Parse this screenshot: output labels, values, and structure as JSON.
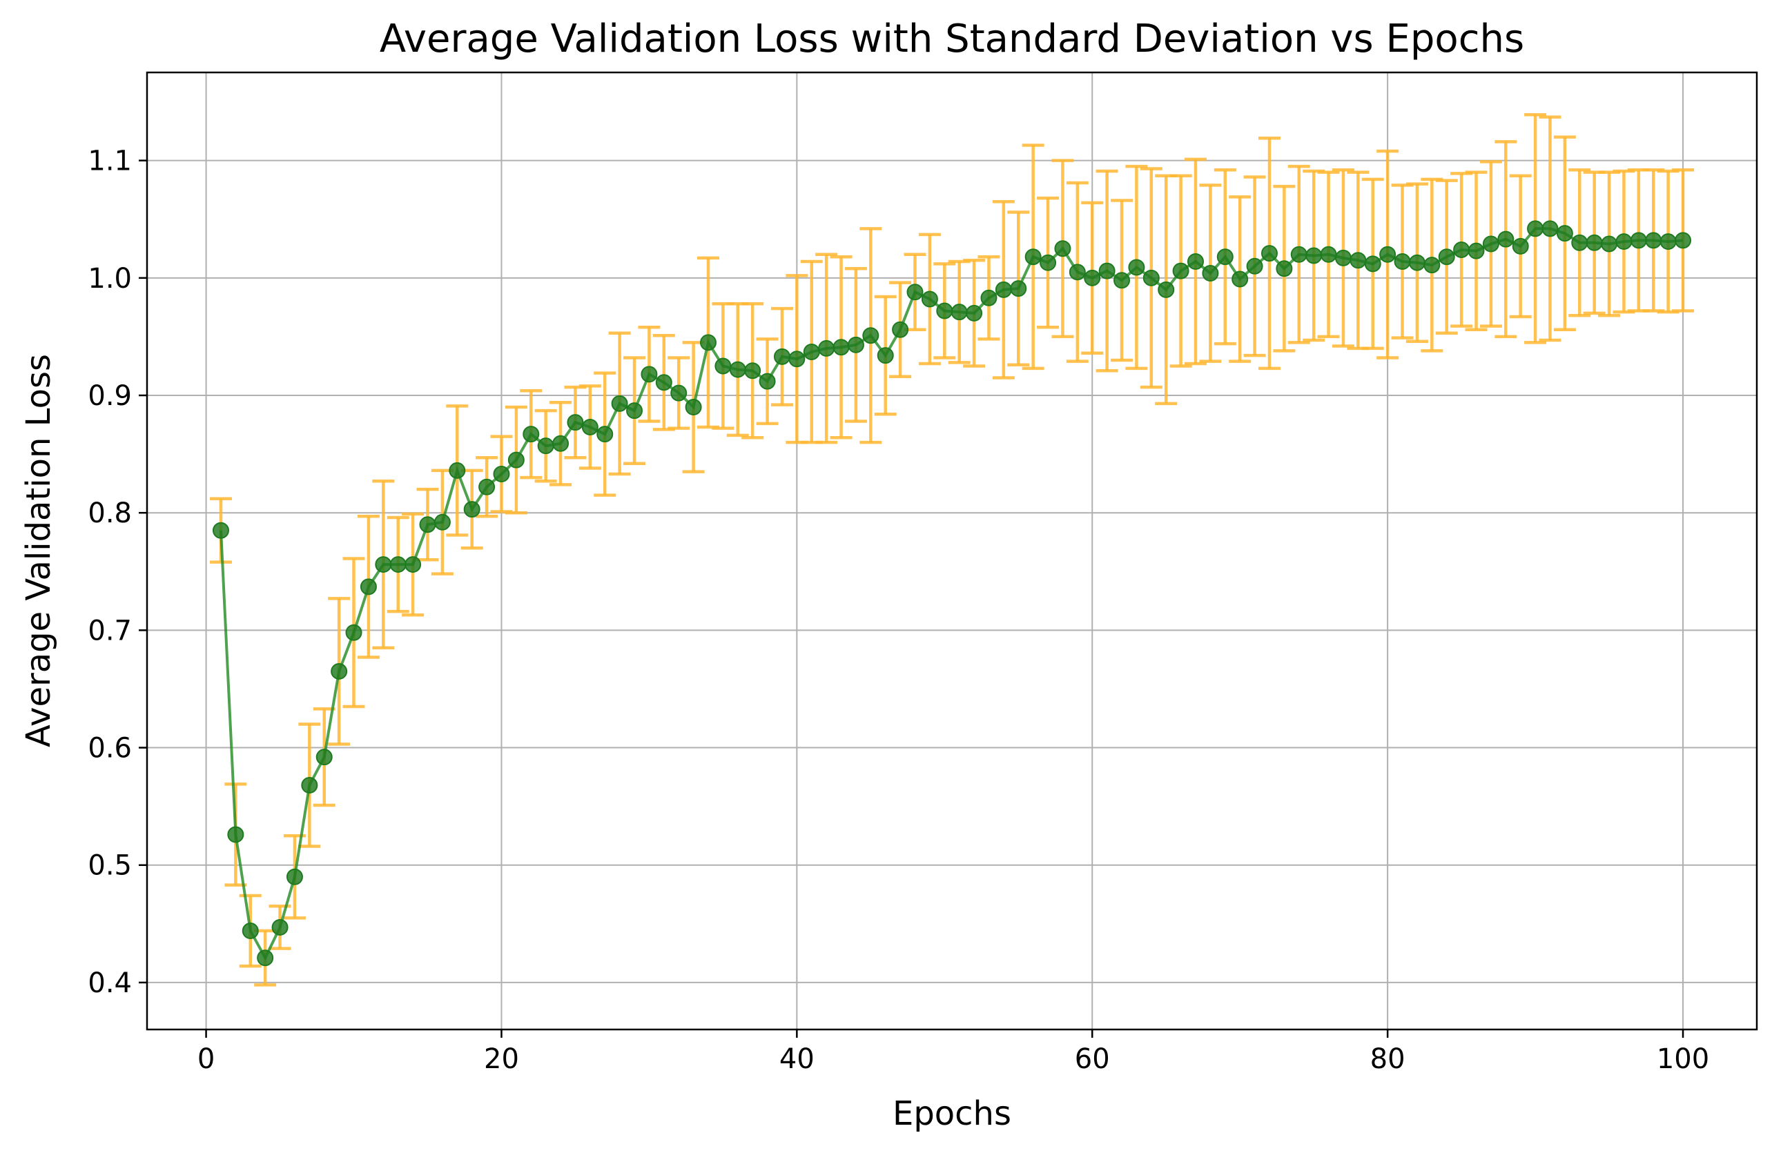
{
  "chart_data": {
    "type": "line",
    "title": "Average Validation Loss with Standard Deviation vs Epochs",
    "xlabel": "Epochs",
    "ylabel": "Average Validation Loss",
    "xlim": [
      -4,
      105
    ],
    "ylim": [
      0.36,
      1.175
    ],
    "xticks": [
      0,
      20,
      40,
      60,
      80,
      100
    ],
    "yticks": [
      0.4,
      0.5,
      0.6,
      0.7,
      0.8,
      0.9,
      1.0,
      1.1
    ],
    "xtick_labels": [
      "0",
      "20",
      "40",
      "60",
      "80",
      "100"
    ],
    "ytick_labels": [
      "0.4",
      "0.5",
      "0.6",
      "0.7",
      "0.8",
      "0.9",
      "1.0",
      "1.1"
    ],
    "grid": true,
    "colors": {
      "line": "#228b22",
      "marker": "#1e7a1e",
      "errorbar": "#ffb732"
    },
    "series": [
      {
        "x": [
          1,
          2,
          3,
          4,
          5,
          6,
          7,
          8,
          9,
          10,
          11,
          12,
          13,
          14,
          15,
          16,
          17,
          18,
          19,
          20,
          21,
          22,
          23,
          24,
          25,
          26,
          27,
          28,
          29,
          30,
          31,
          32,
          33,
          34,
          35,
          36,
          37,
          38,
          39,
          40,
          41,
          42,
          43,
          44,
          45,
          46,
          47,
          48,
          49,
          50,
          51,
          52,
          53,
          54,
          55,
          56,
          57,
          58,
          59,
          60,
          61,
          62,
          63,
          64,
          65,
          66,
          67,
          68,
          69,
          70,
          71,
          72,
          73,
          74,
          75,
          76,
          77,
          78,
          79,
          80,
          81,
          82,
          83,
          84,
          85,
          86,
          87,
          88,
          89,
          90,
          91,
          92,
          93,
          94,
          95,
          96,
          97,
          98,
          99,
          100
        ],
        "y": [
          0.785,
          0.526,
          0.444,
          0.421,
          0.447,
          0.49,
          0.568,
          0.592,
          0.665,
          0.698,
          0.737,
          0.756,
          0.756,
          0.756,
          0.79,
          0.792,
          0.836,
          0.803,
          0.822,
          0.833,
          0.845,
          0.867,
          0.857,
          0.859,
          0.877,
          0.873,
          0.867,
          0.893,
          0.887,
          0.918,
          0.911,
          0.902,
          0.89,
          0.945,
          0.925,
          0.922,
          0.921,
          0.912,
          0.933,
          0.931,
          0.937,
          0.94,
          0.941,
          0.943,
          0.951,
          0.934,
          0.956,
          0.988,
          0.982,
          0.972,
          0.971,
          0.97,
          0.983,
          0.99,
          0.991,
          1.018,
          1.013,
          1.025,
          1.005,
          1.0,
          1.006,
          0.998,
          1.009,
          1.0,
          0.99,
          1.006,
          1.014,
          1.004,
          1.018,
          0.999,
          1.01,
          1.021,
          1.008,
          1.02,
          1.019,
          1.02,
          1.017,
          1.015,
          1.012,
          1.02,
          1.014,
          1.013,
          1.011,
          1.018,
          1.024,
          1.023,
          1.029,
          1.033,
          1.027,
          1.042,
          1.042,
          1.038,
          1.03,
          1.03,
          1.029,
          1.031,
          1.032,
          1.032,
          1.031,
          1.032
        ],
        "err": [
          0.027,
          0.043,
          0.03,
          0.023,
          0.018,
          0.035,
          0.052,
          0.041,
          0.062,
          0.063,
          0.06,
          0.071,
          0.04,
          0.043,
          0.03,
          0.044,
          0.055,
          0.033,
          0.025,
          0.032,
          0.045,
          0.037,
          0.03,
          0.035,
          0.03,
          0.035,
          0.052,
          0.06,
          0.045,
          0.04,
          0.04,
          0.03,
          0.055,
          0.072,
          0.053,
          0.056,
          0.057,
          0.036,
          0.041,
          0.071,
          0.077,
          0.08,
          0.077,
          0.065,
          0.091,
          0.05,
          0.04,
          0.032,
          0.055,
          0.04,
          0.043,
          0.045,
          0.035,
          0.075,
          0.065,
          0.095,
          0.055,
          0.075,
          0.076,
          0.064,
          0.085,
          0.068,
          0.086,
          0.093,
          0.097,
          0.081,
          0.087,
          0.075,
          0.074,
          0.07,
          0.076,
          0.098,
          0.07,
          0.075,
          0.072,
          0.07,
          0.075,
          0.075,
          0.072,
          0.088,
          0.065,
          0.067,
          0.073,
          0.065,
          0.065,
          0.067,
          0.07,
          0.083,
          0.06,
          0.097,
          0.095,
          0.082,
          0.062,
          0.06,
          0.061,
          0.06,
          0.06,
          0.06,
          0.06,
          0.06
        ]
      }
    ]
  }
}
